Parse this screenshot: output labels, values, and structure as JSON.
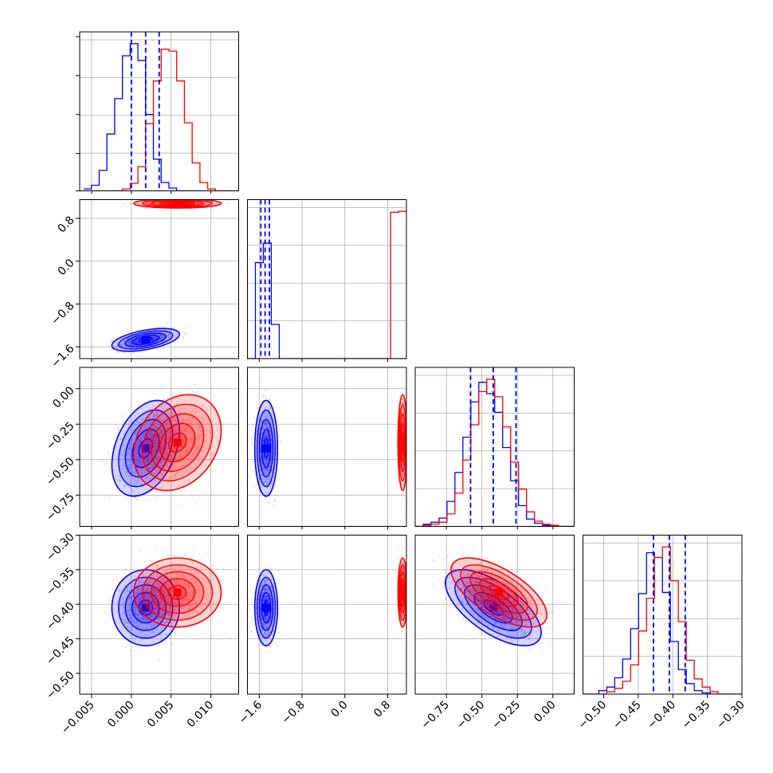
{
  "chart_data": {
    "type": "corner",
    "title": "",
    "colors": {
      "series_a": "#0000ff",
      "series_b": "#ff0000",
      "grid": "#b0b0b0",
      "frame": "#000000"
    },
    "params": [
      {
        "range": [
          -0.0065,
          0.0135
        ],
        "ticks": [
          -0.005,
          0.0,
          0.005,
          0.01
        ],
        "tick_labels": [
          "−0.005",
          "0.000",
          "0.005",
          "0.010"
        ]
      },
      {
        "range": [
          -1.82,
          1.15
        ],
        "ticks": [
          -1.6,
          -0.8,
          0.0,
          0.8
        ],
        "tick_labels": [
          "−1.6",
          "−0.8",
          "0.0",
          "0.8"
        ]
      },
      {
        "range": [
          -0.97,
          0.15
        ],
        "ticks": [
          -0.75,
          -0.5,
          -0.25,
          0.0
        ],
        "tick_labels": [
          "−0.75",
          "−0.50",
          "−0.25",
          "0.00"
        ]
      },
      {
        "range": [
          -0.53,
          -0.3
        ],
        "ticks": [
          -0.5,
          -0.45,
          -0.4,
          -0.35,
          -0.3
        ],
        "tick_labels": [
          "−0.50",
          "−0.45",
          "−0.40",
          "−0.35",
          "−0.30"
        ]
      }
    ],
    "series": [
      {
        "name": "",
        "color": "#0000ff",
        "means": [
          0.0018,
          -1.47,
          -0.42,
          -0.405
        ],
        "sds": [
          0.0017,
          0.085,
          0.135,
          0.022
        ],
        "quantiles": [
          [
            0.0,
            0.0018,
            0.0035
          ],
          [
            -1.57,
            -1.49,
            -1.41
          ],
          [
            -0.58,
            -0.42,
            -0.26
          ],
          [
            -0.428,
            -0.405,
            -0.382
          ]
        ],
        "correlations": [
          [
            0,
            1,
            0.5,
            0.15
          ],
          [
            1,
            0,
            0.3
          ],
          [
            2,
            3,
            -0.65
          ],
          [
            0,
            2,
            0.35
          ],
          [
            1,
            3,
            0.0
          ],
          [
            0,
            3,
            0.0
          ]
        ]
      },
      {
        "name": "",
        "color": "#ff0000",
        "means": [
          0.0058,
          1.08,
          -0.38,
          -0.383
        ],
        "sds": [
          0.0022,
          0.035,
          0.135,
          0.02
        ],
        "quantiles": [],
        "correlations": [
          [
            2,
            3,
            -0.65
          ],
          [
            0,
            2,
            0.25
          ],
          [
            0,
            1,
            0.0
          ],
          [
            1,
            2,
            0.0
          ],
          [
            1,
            3,
            0.0
          ],
          [
            0,
            3,
            0.0
          ]
        ]
      }
    ],
    "histograms": [
      {
        "bins": [
          -0.006,
          0.0135,
          20
        ],
        "series": [
          {
            "color": "#0000ff",
            "counts": [
              2,
              6,
              22,
              61,
              99,
              145,
              158,
              140,
              82,
              34,
              9,
              3,
              0,
              0,
              0,
              0,
              0,
              0,
              0,
              0
            ]
          },
          {
            "color": "#ff0000",
            "counts": [
              0,
              0,
              0,
              0,
              0,
              2,
              8,
              26,
              72,
              118,
              152,
              150,
              118,
              73,
              30,
              9,
              2,
              0,
              0,
              0
            ]
          }
        ]
      },
      {
        "bins": [
          -1.82,
          1.15,
          20
        ],
        "series": [
          {
            "color": "#0000ff",
            "counts": [
              0,
              118,
              142,
              42,
              0,
              0,
              0,
              0,
              0,
              0,
              0,
              0,
              0,
              0,
              0,
              0,
              0,
              0,
              0,
              0
            ]
          },
          {
            "color": "#ff0000",
            "counts": [
              0,
              0,
              0,
              0,
              0,
              0,
              0,
              0,
              0,
              0,
              0,
              0,
              0,
              0,
              0,
              0,
              0,
              0,
              180,
              181
            ]
          }
        ]
      },
      {
        "bins": [
          -0.97,
          0.15,
          20
        ],
        "series": [
          {
            "color": "#0000ff",
            "counts": [
              0,
              2,
              4,
              8,
              24,
              52,
              86,
              120,
              139,
              128,
              110,
              76,
              44,
              20,
              7,
              3,
              1,
              0,
              0,
              0
            ]
          },
          {
            "color": "#ff0000",
            "counts": [
              0,
              1,
              2,
              4,
              12,
              32,
              64,
              98,
              130,
              142,
              125,
              96,
              62,
              36,
              14,
              5,
              2,
              1,
              0,
              0
            ]
          }
        ]
      },
      {
        "bins": [
          -0.53,
          -0.3,
          20
        ],
        "series": [
          {
            "color": "#0000ff",
            "counts": [
              0,
              0,
              3,
              6,
              14,
              30,
              56,
              86,
              121,
              117,
              87,
              45,
              21,
              9,
              3,
              1,
              0,
              0,
              0,
              0
            ]
          },
          {
            "color": "#ff0000",
            "counts": [
              0,
              0,
              0,
              2,
              5,
              11,
              25,
              54,
              82,
              117,
              126,
              97,
              62,
              29,
              13,
              6,
              2,
              0,
              0,
              0
            ]
          }
        ]
      }
    ]
  }
}
